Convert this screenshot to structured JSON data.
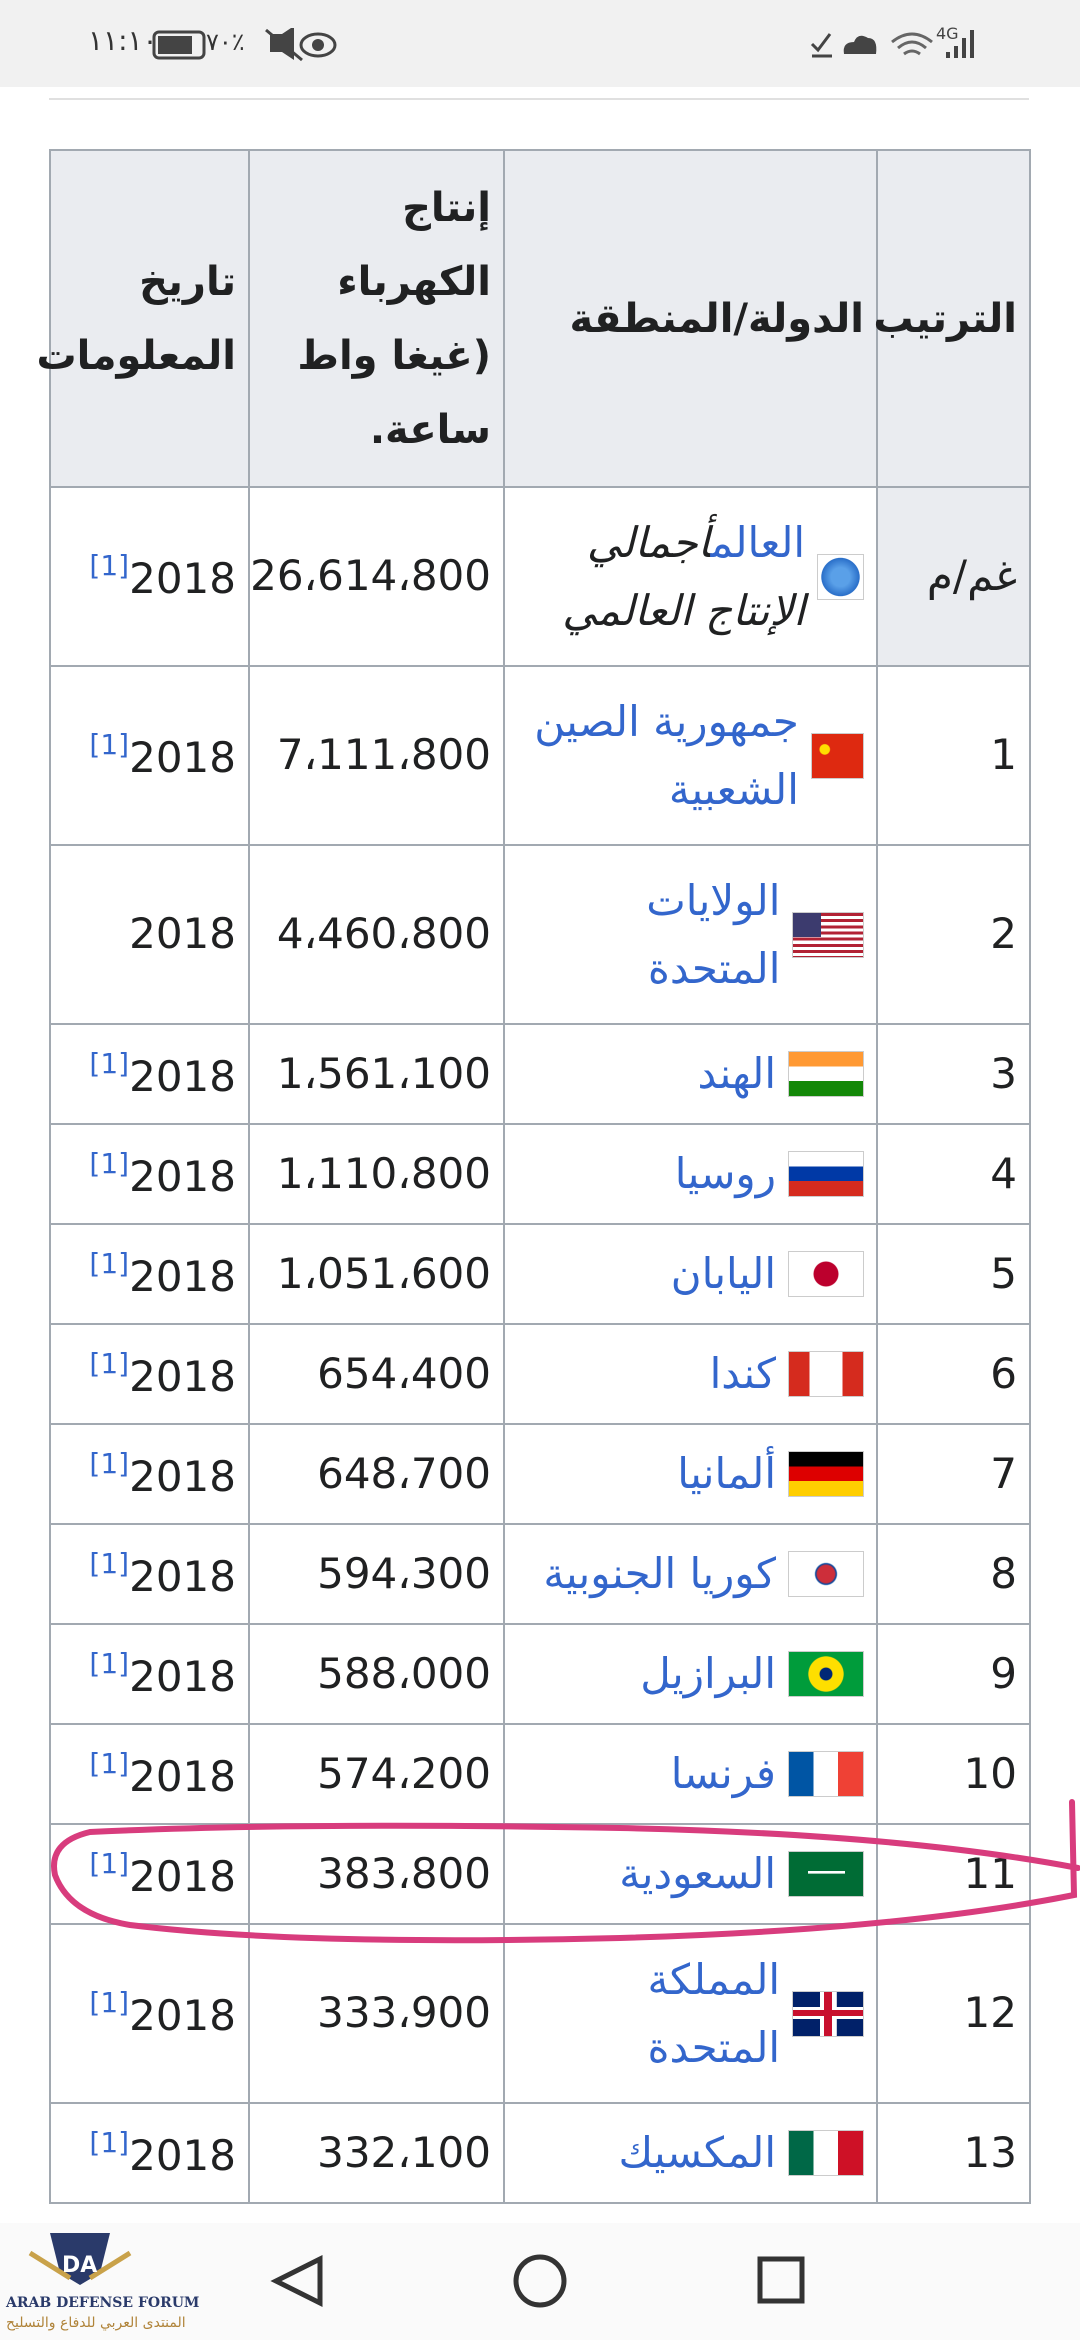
{
  "status_bar": {
    "time": "١١:١٠",
    "battery": "٧٠٪",
    "network": "4G"
  },
  "table": {
    "header": [
      "الترتيب",
      "الدولة/المنطقة",
      "إنتاج الكهرباء (غيغا واط ساعة.",
      "تاريخ المعلومات"
    ],
    "rows": [
      {
        "rank": "غم/م",
        "country": "العالم",
        "note": "أجمالي الإنتاج العالمي",
        "value": "26،614،800",
        "year": "2018",
        "ref": "[1]"
      },
      {
        "rank": "1",
        "country": "جمهورية الصين الشعبية",
        "value": "7،111،800",
        "year": "2018",
        "ref": "[1]"
      },
      {
        "rank": "2",
        "country": "الولايات المتحدة",
        "value": "4،460،800",
        "year": "2018"
      },
      {
        "rank": "3",
        "country": "الهند",
        "value": "1،561،100",
        "year": "2018",
        "ref": "[1]"
      },
      {
        "rank": "4",
        "country": "روسيا",
        "value": "1،110،800",
        "year": "2018",
        "ref": "[1]"
      },
      {
        "rank": "5",
        "country": "اليابان",
        "value": "1،051،600",
        "year": "2018",
        "ref": "[1]"
      },
      {
        "rank": "6",
        "country": "كندا",
        "value": "654،400",
        "year": "2018",
        "ref": "[1]"
      },
      {
        "rank": "7",
        "country": "ألمانيا",
        "value": "648،700",
        "year": "2018",
        "ref": "[1]"
      },
      {
        "rank": "8",
        "country": "كوريا الجنوبية",
        "value": "594،300",
        "year": "2018",
        "ref": "[1]"
      },
      {
        "rank": "9",
        "country": "البرازيل",
        "value": "588،000",
        "year": "2018",
        "ref": "[1]"
      },
      {
        "rank": "10",
        "country": "فرنسا",
        "value": "574،200",
        "year": "2018",
        "ref": "[1]"
      },
      {
        "rank": "11",
        "country": "السعودية",
        "value": "383،800",
        "year": "2018",
        "ref": "[1]"
      },
      {
        "rank": "12",
        "country": "المملكة المتحدة",
        "value": "333،900",
        "year": "2018",
        "ref": "[1]"
      },
      {
        "rank": "13",
        "country": "المكسيك",
        "value": "332،100",
        "year": "2018",
        "ref": "[1]"
      }
    ]
  },
  "watermark": {
    "logo": "DA",
    "name": "ARAB DEFENSE FORUM",
    "arabic": "المنتدى العربي للدفاع والتسليح"
  }
}
